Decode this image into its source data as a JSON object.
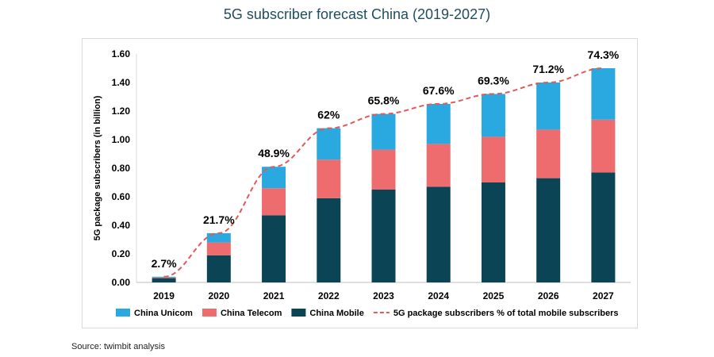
{
  "chart_data": {
    "type": "bar",
    "stacked": true,
    "title": "5G subscriber forecast China (2019-2027)",
    "ylabel": "5G package subscribers (in billion)",
    "xlabel": "",
    "ylim": [
      0,
      1.6
    ],
    "yticks": [
      "0.00",
      "0.20",
      "0.40",
      "0.60",
      "0.80",
      "1.00",
      "1.20",
      "1.40",
      "1.60"
    ],
    "categories": [
      "2019",
      "2020",
      "2021",
      "2022",
      "2023",
      "2024",
      "2025",
      "2026",
      "2027"
    ],
    "series": [
      {
        "name": "China Mobile",
        "color": "#0b4455",
        "values": [
          0.03,
          0.19,
          0.47,
          0.59,
          0.65,
          0.67,
          0.7,
          0.73,
          0.77
        ]
      },
      {
        "name": "China Telecom",
        "color": "#ee6b6e",
        "values": [
          0.005,
          0.09,
          0.19,
          0.27,
          0.28,
          0.3,
          0.32,
          0.34,
          0.37
        ]
      },
      {
        "name": "China Unicom",
        "color": "#29a9df",
        "values": [
          0.005,
          0.065,
          0.15,
          0.22,
          0.25,
          0.28,
          0.3,
          0.33,
          0.36
        ]
      }
    ],
    "line": {
      "name": "5G package subscribers % of total mobile subscribers",
      "color": "#e05a5a",
      "labels": [
        "2.7%",
        "21.7%",
        "48.9%",
        "62%",
        "65.8%",
        "67.6%",
        "69.3%",
        "71.2%",
        "74.3%"
      ]
    },
    "legend": [
      {
        "name": "China Unicom",
        "color": "#29a9df",
        "kind": "box"
      },
      {
        "name": "China Telecom",
        "color": "#ee6b6e",
        "kind": "box"
      },
      {
        "name": "China Mobile",
        "color": "#0b4455",
        "kind": "box"
      },
      {
        "name": "5G package subscribers % of total mobile subscribers",
        "color": "#e05a5a",
        "kind": "dash"
      }
    ]
  },
  "source": "Source: twimbit analysis"
}
